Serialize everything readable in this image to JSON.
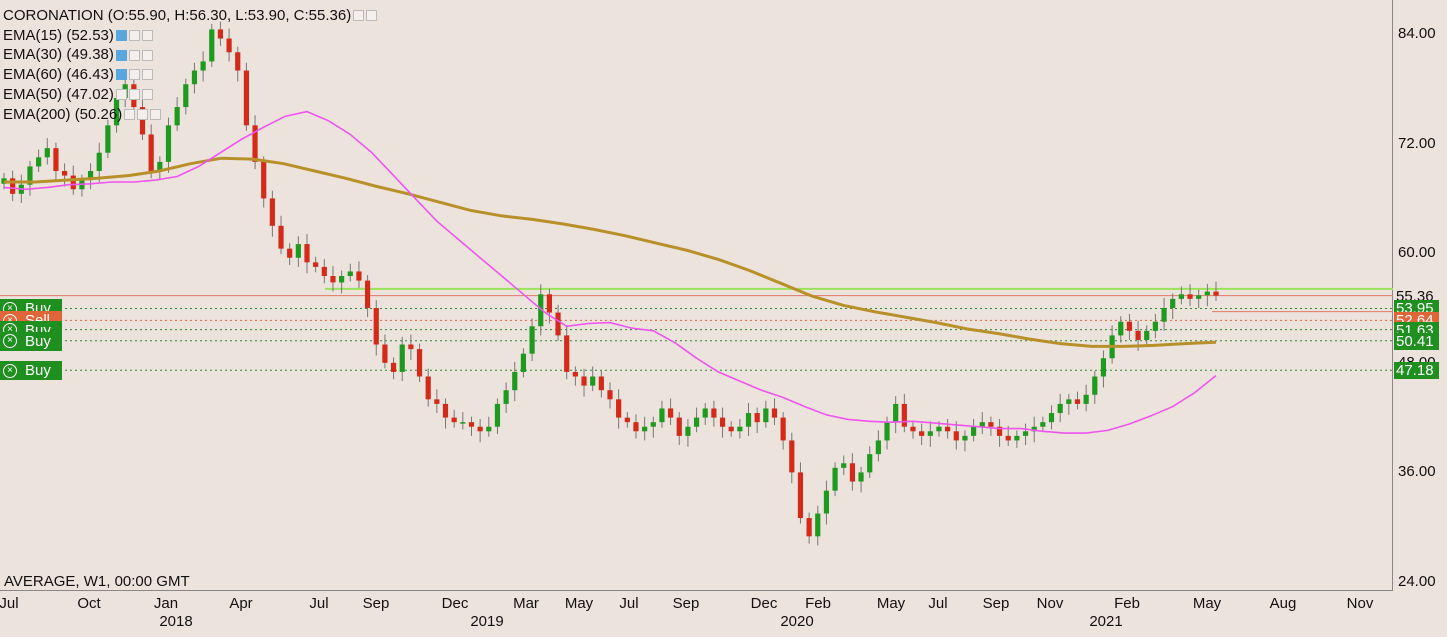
{
  "legend": {
    "title": "CORONATION (O:55.90, H:56.30, L:53.90, C:55.36)",
    "indicators": [
      {
        "label": "EMA(15) (52.53)"
      },
      {
        "label": "EMA(30) (49.38)"
      },
      {
        "label": "EMA(60) (46.43)"
      },
      {
        "label": "EMA(50) (47.02)"
      },
      {
        "label": "EMA(200) (50.26)"
      }
    ],
    "footer": "AVERAGE, W1, 00:00 GMT"
  },
  "orders": [
    {
      "label": "Buy",
      "side": "buy",
      "price": 53.95
    },
    {
      "label": "Sell",
      "side": "sell",
      "price": 52.64
    },
    {
      "label": "Buy",
      "side": "buy",
      "price": 51.63
    },
    {
      "label": "Buy",
      "side": "buy",
      "price": 50.41
    },
    {
      "label": "Buy",
      "side": "buy",
      "price": 47.18
    }
  ],
  "price_tags": [
    {
      "text": "55.36",
      "color": "#ffffff",
      "bg": "#ede3dd",
      "price": 55.36
    },
    {
      "text": "53.95",
      "color": "#ffffff",
      "bg": "#1f8f1f",
      "price": 53.95
    },
    {
      "text": "52.64",
      "color": "#ffffff",
      "bg": "#e0663a",
      "price": 52.64
    },
    {
      "text": "51.63",
      "color": "#ffffff",
      "bg": "#1f8f1f",
      "price": 51.63
    },
    {
      "text": "50.41",
      "color": "#ffffff",
      "bg": "#1f8f1f",
      "price": 50.41
    },
    {
      "text": "47.18",
      "color": "#ffffff",
      "bg": "#1f8f1f",
      "price": 47.18
    }
  ],
  "colors": {
    "bull": "#1e9a1e",
    "bear": "#d42a1a",
    "ema_short": "#ee55ee",
    "ema_long": "#b8902a",
    "hline_green": "#9be35a",
    "hline_red": "#e07a6a"
  },
  "chart_data": {
    "type": "candlestick",
    "title": "CORONATION",
    "timeframe": "W1",
    "ylim": [
      24,
      86
    ],
    "y_ticks": [
      "84.00",
      "72.00",
      "60.00",
      "48.00",
      "36.00",
      "24.00"
    ],
    "x_ticks": [
      "Jul",
      "Oct",
      "Jan",
      "Apr",
      "Jul",
      "Sep",
      "Dec",
      "Mar",
      "May",
      "Jul",
      "Sep",
      "Dec",
      "Feb",
      "May",
      "Jul",
      "Sep",
      "Nov",
      "Feb",
      "May",
      "Aug",
      "Nov"
    ],
    "x_years": [
      "2018",
      "2019",
      "2020",
      "2021"
    ],
    "last_close": 55.36,
    "horizontal_lines": [
      {
        "price": 56.1,
        "color": "green"
      },
      {
        "price": 55.36,
        "color": "red"
      }
    ],
    "close_path": [
      68.2,
      66.5,
      67.5,
      69.5,
      70.5,
      71.5,
      69.0,
      68.5,
      67.0,
      68.0,
      69.0,
      71.0,
      74.0,
      77.0,
      78.5,
      76.0,
      73.0,
      69.0,
      70.0,
      74.0,
      76.0,
      78.5,
      80.0,
      81.0,
      84.5,
      83.5,
      82.0,
      80.0,
      74.0,
      70.0,
      66.0,
      63.0,
      60.5,
      59.5,
      61.0,
      59.0,
      58.5,
      57.5,
      56.8,
      57.5,
      58.0,
      57.0,
      54.0,
      50.0,
      48.0,
      47.0,
      50.0,
      49.5,
      46.5,
      44.0,
      43.5,
      42.0,
      41.5,
      41.5,
      41.0,
      40.5,
      41.0,
      43.5,
      45.0,
      47.0,
      49.0,
      52.0,
      55.5,
      53.5,
      51.0,
      47.0,
      46.5,
      45.5,
      46.5,
      45.0,
      44.0,
      42.0,
      41.5,
      40.5,
      41.0,
      41.5,
      43.0,
      42.0,
      40.0,
      41.0,
      42.0,
      43.0,
      42.0,
      41.0,
      40.5,
      41.0,
      42.5,
      41.5,
      43.0,
      42.0,
      39.5,
      36.0,
      31.0,
      29.0,
      31.5,
      34.0,
      36.5,
      37.0,
      35.0,
      36.0,
      38.0,
      39.5,
      41.5,
      43.5,
      41.0,
      40.5,
      40.0,
      40.5,
      41.0,
      40.5,
      39.5,
      40.0,
      41.0,
      41.5,
      41.0,
      40.0,
      39.5,
      40.0,
      40.5,
      41.0,
      41.5,
      42.5,
      43.5,
      44.0,
      43.5,
      44.5,
      46.5,
      48.5,
      51.0,
      52.5,
      51.5,
      50.5,
      51.5,
      52.5,
      54.0,
      55.0,
      55.5,
      55.0,
      55.4,
      55.8,
      55.36
    ],
    "ema_short_path": [
      67.2,
      67.0,
      67.2,
      67.5,
      67.6,
      67.8,
      67.8,
      68.0,
      68.4,
      69.5,
      71.0,
      72.5,
      73.8,
      75.0,
      75.5,
      74.5,
      73.0,
      71.0,
      68.5,
      66.0,
      63.5,
      61.5,
      59.5,
      57.5,
      55.5,
      53.5,
      52.0,
      52.3,
      52.4,
      51.8,
      51.5,
      50.2,
      48.5,
      47.0,
      46.0,
      45.0,
      44.2,
      43.2,
      42.3,
      41.8,
      41.6,
      41.5,
      41.6,
      41.4,
      41.2,
      41.0,
      40.8,
      40.8,
      40.5,
      40.3,
      40.3,
      40.6,
      41.3,
      42.2,
      43.2,
      44.7,
      46.6
    ],
    "ema_long_path": [
      67.8,
      67.8,
      68.0,
      68.2,
      68.5,
      69.0,
      69.8,
      70.4,
      70.3,
      69.8,
      69.0,
      68.2,
      67.3,
      66.5,
      65.6,
      64.7,
      64.1,
      63.7,
      63.2,
      62.6,
      61.9,
      61.1,
      60.3,
      59.3,
      58.1,
      56.7,
      55.3,
      54.3,
      53.6,
      53.0,
      52.4,
      51.7,
      51.2,
      50.6,
      50.1,
      49.8,
      49.8,
      49.9,
      50.1,
      50.26
    ]
  }
}
